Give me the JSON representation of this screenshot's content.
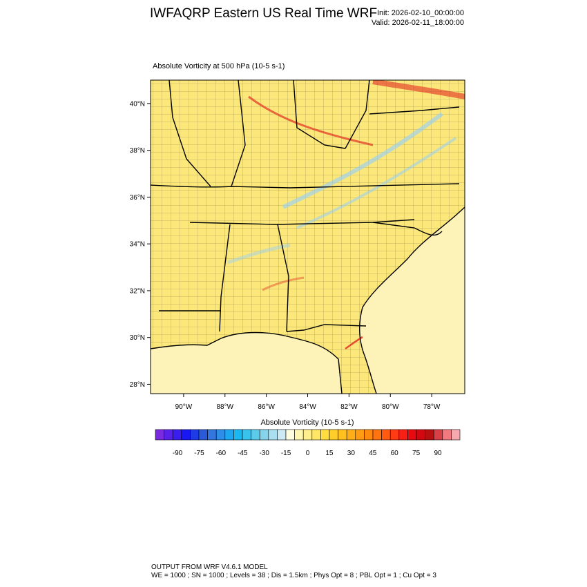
{
  "header": {
    "title": "IWFAQRP Eastern US Real Time WRF",
    "init": "Init: 2026-02-10_00:00:00",
    "valid": "Valid: 2026-02-11_18:00:00"
  },
  "map": {
    "subtitle": "Absolute Vorticity at 500 hPa   (10-5 s-1)",
    "lat_range": [
      27.6,
      41.0
    ],
    "lon_range": [
      -91.6,
      -76.4
    ],
    "lat_ticks": [
      {
        "value": 40,
        "label": "40°N"
      },
      {
        "value": 38,
        "label": "38°N"
      },
      {
        "value": 36,
        "label": "36°N"
      },
      {
        "value": 34,
        "label": "34°N"
      },
      {
        "value": 32,
        "label": "32°N"
      },
      {
        "value": 30,
        "label": "30°N"
      },
      {
        "value": 28,
        "label": "28°N"
      }
    ],
    "lon_ticks": [
      {
        "value": -90,
        "label": "90°W"
      },
      {
        "value": -88,
        "label": "88°W"
      },
      {
        "value": -86,
        "label": "86°W"
      },
      {
        "value": -84,
        "label": "84°W"
      },
      {
        "value": -82,
        "label": "82°W"
      },
      {
        "value": -80,
        "label": "80°W"
      },
      {
        "value": -78,
        "label": "78°W"
      }
    ],
    "background_color": "#fbe77a",
    "ocean_color": "#fdf2b8",
    "vort_max_color": "#e33b2a",
    "vort_min_color": "#9fd2ec"
  },
  "colorbar": {
    "title": "Absolute Vorticity  (10-5 s-1)",
    "colors": [
      "#7a2be0",
      "#5a22e8",
      "#3a1ef0",
      "#1a18f2",
      "#1f3be8",
      "#2a5ad8",
      "#3276de",
      "#2e8ee8",
      "#1ea6f2",
      "#19b8f0",
      "#38c2ec",
      "#5ccbea",
      "#86d4ec",
      "#aadff0",
      "#cdeaf4",
      "#fffde0",
      "#fff7b0",
      "#ffef8c",
      "#ffe666",
      "#ffdc40",
      "#ffce2a",
      "#ffc020",
      "#ffae18",
      "#ff9c14",
      "#ff8a10",
      "#ff7410",
      "#ff5a12",
      "#ff3c14",
      "#f82014",
      "#e80a10",
      "#d20810",
      "#b81010",
      "#d84048",
      "#f07a80",
      "#f6aab0"
    ],
    "labels": [
      "-90",
      "-75",
      "-60",
      "-45",
      "-30",
      "-15",
      "0",
      "15",
      "30",
      "45",
      "60",
      "75",
      "90"
    ]
  },
  "footer": {
    "line1": "OUTPUT FROM WRF V4.6.1 MODEL",
    "line2": "WE = 1000 ; SN = 1000 ; Levels = 38 ; Dis = 1.5km ; Phys Opt = 8 ; PBL Opt = 1 ; Cu Opt = 3"
  }
}
